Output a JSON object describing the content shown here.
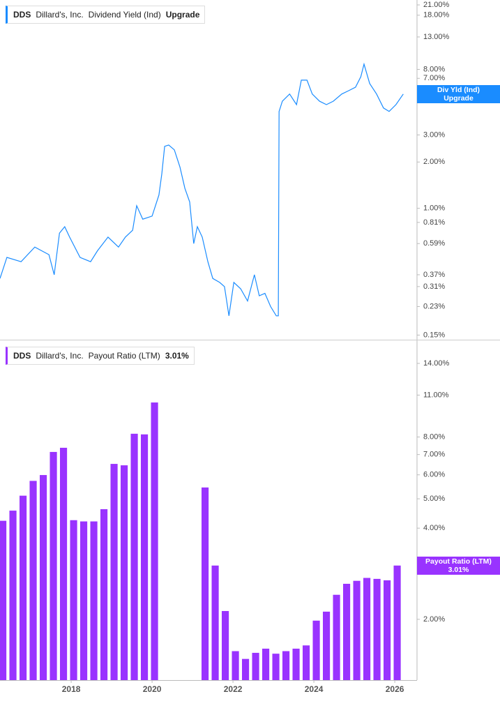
{
  "chart_data": [
    {
      "type": "line",
      "ticker": "DDS",
      "company": "Dillard's, Inc.",
      "series_name": "Dividend Yield (Ind)",
      "status": "Upgrade",
      "tag_label": "Div Yld (Ind)",
      "color": "#1a8cff",
      "log_scale": true,
      "xlim": [
        2016.24,
        2026.55
      ],
      "ylim": [
        0.14,
        22.6
      ],
      "yticks": [
        {
          "value": 21,
          "label": "21.00%"
        },
        {
          "value": 18,
          "label": "18.00%"
        },
        {
          "value": 13,
          "label": "13.00%"
        },
        {
          "value": 8,
          "label": "8.00%"
        },
        {
          "value": 7,
          "label": "7.00%"
        },
        {
          "value": 3,
          "label": "3.00%"
        },
        {
          "value": 2,
          "label": "2.00%"
        },
        {
          "value": 1,
          "label": "1.00%"
        },
        {
          "value": 0.81,
          "label": "0.81%"
        },
        {
          "value": 0.59,
          "label": "0.59%"
        },
        {
          "value": 0.37,
          "label": "0.37%"
        },
        {
          "value": 0.31,
          "label": "0.31%"
        },
        {
          "value": 0.23,
          "label": "0.23%"
        },
        {
          "value": 0.15,
          "label": "0.15%"
        }
      ],
      "x": [
        2016.24,
        2016.41,
        2016.76,
        2017.1,
        2017.45,
        2017.58,
        2017.71,
        2017.84,
        2017.96,
        2018.22,
        2018.48,
        2018.65,
        2018.91,
        2019.17,
        2019.34,
        2019.52,
        2019.62,
        2019.77,
        2020.0,
        2020.17,
        2020.24,
        2020.31,
        2020.41,
        2020.55,
        2020.69,
        2020.81,
        2020.93,
        2021.03,
        2021.12,
        2021.24,
        2021.38,
        2021.5,
        2021.67,
        2021.79,
        2021.9,
        2022.02,
        2022.19,
        2022.36,
        2022.53,
        2022.65,
        2022.79,
        2022.93,
        2023.07,
        2023.12,
        2023.14,
        2023.22,
        2023.4,
        2023.57,
        2023.69,
        2023.83,
        2023.96,
        2024.14,
        2024.31,
        2024.48,
        2024.69,
        2024.86,
        2025.03,
        2025.16,
        2025.24,
        2025.38,
        2025.55,
        2025.72,
        2025.86,
        2026.03,
        2026.21
      ],
      "values": [
        0.35,
        0.48,
        0.45,
        0.56,
        0.5,
        0.37,
        0.69,
        0.76,
        0.65,
        0.48,
        0.45,
        0.53,
        0.65,
        0.56,
        0.65,
        0.72,
        1.04,
        0.85,
        0.89,
        1.22,
        1.67,
        2.53,
        2.58,
        2.4,
        1.85,
        1.35,
        1.1,
        0.59,
        0.76,
        0.65,
        0.45,
        0.35,
        0.33,
        0.31,
        0.2,
        0.33,
        0.3,
        0.25,
        0.37,
        0.27,
        0.28,
        0.23,
        0.2,
        0.2,
        4.26,
        4.97,
        5.53,
        4.72,
        6.81,
        6.81,
        5.53,
        4.97,
        4.72,
        4.97,
        5.53,
        5.82,
        6.13,
        7.17,
        8.66,
        6.48,
        5.53,
        4.49,
        4.26,
        4.72,
        5.53
      ]
    },
    {
      "type": "bar",
      "ticker": "DDS",
      "company": "Dillard's, Inc.",
      "series_name": "Payout Ratio (LTM)",
      "last_value_label": "3.01%",
      "color": "#9933ff",
      "log_scale": true,
      "xlim": [
        2016.24,
        2026.55
      ],
      "ylim": [
        1.26,
        16.5
      ],
      "xticks": [
        2018,
        2020,
        2022,
        2024,
        2026
      ],
      "yticks": [
        {
          "value": 14,
          "label": "14.00%"
        },
        {
          "value": 11,
          "label": "11.00%"
        },
        {
          "value": 8,
          "label": "8.00%"
        },
        {
          "value": 7,
          "label": "7.00%"
        },
        {
          "value": 6,
          "label": "6.00%"
        },
        {
          "value": 5,
          "label": "5.00%"
        },
        {
          "value": 4,
          "label": "4.00%"
        },
        {
          "value": 2,
          "label": "2.00%"
        }
      ],
      "x": [
        2016.31,
        2016.56,
        2016.81,
        2017.06,
        2017.31,
        2017.56,
        2017.81,
        2018.06,
        2018.31,
        2018.56,
        2018.81,
        2019.06,
        2019.31,
        2019.56,
        2019.81,
        2020.06,
        2020.31,
        2020.56,
        2020.81,
        2021.06,
        2021.31,
        2021.56,
        2021.81,
        2022.06,
        2022.31,
        2022.56,
        2022.81,
        2023.06,
        2023.31,
        2023.56,
        2023.81,
        2024.06,
        2024.31,
        2024.56,
        2024.81,
        2025.06,
        2025.31,
        2025.56,
        2025.81,
        2026.06
      ],
      "values": [
        4.23,
        4.57,
        5.12,
        5.73,
        5.99,
        7.14,
        7.37,
        4.25,
        4.21,
        4.21,
        4.62,
        6.52,
        6.45,
        8.2,
        8.16,
        10.4,
        null,
        null,
        null,
        null,
        5.45,
        3.01,
        2.13,
        1.57,
        1.48,
        1.55,
        1.6,
        1.54,
        1.57,
        1.6,
        1.64,
        1.98,
        2.12,
        2.41,
        2.62,
        2.68,
        2.74,
        2.72,
        2.69,
        3.01
      ]
    }
  ]
}
